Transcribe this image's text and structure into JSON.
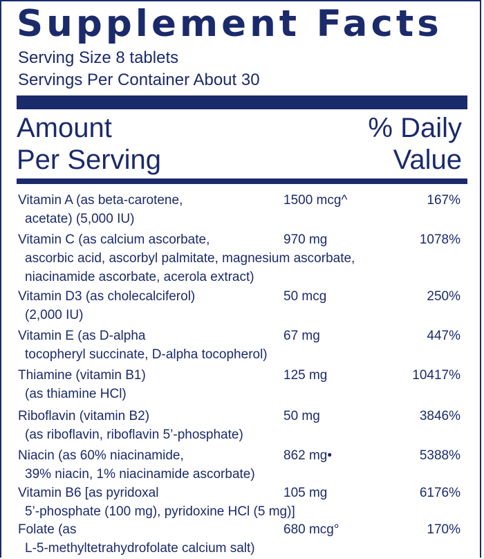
{
  "title": "Supplement Facts",
  "serving_size": "Serving Size 8 tablets",
  "servings_per_container": "Servings Per Container About 30",
  "header": {
    "amount_line1": "Amount",
    "amount_line2": "Per Serving",
    "dv_line1": "% Daily",
    "dv_line2": "Value"
  },
  "nutrients": [
    {
      "name_lines": [
        "Vitamin A (as beta-carotene,",
        "acetate) (5,000 IU)"
      ],
      "amount": "1500 mcg^",
      "dv": "167%"
    },
    {
      "name_lines": [
        "Vitamin C (as calcium ascorbate,",
        "ascorbic acid, ascorbyl palmitate, magnesium ascorbate,",
        "niacinamide ascorbate, acerola extract)"
      ],
      "amount": "970 mg",
      "dv": "1078%"
    },
    {
      "name_lines": [
        "Vitamin D3 (as cholecalciferol)",
        "(2,000 IU)"
      ],
      "amount": "50 mcg",
      "dv": "250%"
    },
    {
      "name_lines": [
        "Vitamin E (as D-alpha",
        "tocopheryl succinate, D-alpha tocopherol)"
      ],
      "amount": "67 mg",
      "dv": "447%"
    },
    {
      "name_lines": [
        "Thiamine (vitamin B1)",
        "(as thiamine HCl)"
      ],
      "amount": "125 mg",
      "dv": "10417%"
    },
    {
      "name_lines": [
        "Riboflavin (vitamin B2)",
        "(as riboflavin, riboflavin 5’-phosphate)"
      ],
      "amount": "50 mg",
      "dv": "3846%"
    },
    {
      "name_lines": [
        "Niacin (as 60% niacinamide,",
        "39% niacin, 1% niacinamide ascorbate)"
      ],
      "amount": "862 mg•",
      "dv": "5388%"
    },
    {
      "name_lines": [
        "Vitamin B6 [as pyridoxal",
        "5’-phosphate (100 mg), pyridoxine HCl (5 mg)]"
      ],
      "amount": "105 mg",
      "dv": "6176%"
    },
    {
      "name_lines": [
        "Folate (as",
        "L-5-methyltetrahydrofolate calcium salt)"
      ],
      "amount": "680 mcg°",
      "dv": "170%"
    }
  ]
}
